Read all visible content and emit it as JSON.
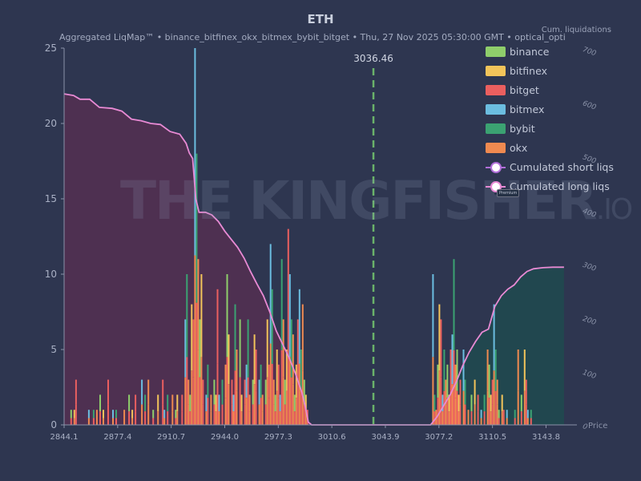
{
  "chart_data": {
    "type": "bar",
    "title": "ETH",
    "subtitle": "Aggregated LiqMap™  •  binance_bitfinex_okx_bitmex_bybit_bitget  •  Thu, 27 Nov 2025 05:30:00 GMT  •  optical_opti",
    "watermark": "THE KINGFISHER",
    "watermark_suffix": ".IO",
    "xlabel": "Price",
    "ylabel_right": "Cum. liquidations",
    "xlim": [
      2844.1,
      3163.0
    ],
    "ylim": [
      0,
      25
    ],
    "ylim_right": [
      0,
      700
    ],
    "x_ticks": [
      "2844.1",
      "2877.4",
      "2910.7",
      "2944.0",
      "2977.3",
      "3010.6",
      "3043.9",
      "3077.2",
      "3110.5",
      "3143.8"
    ],
    "y_ticks": [
      "0",
      "5",
      "10",
      "15",
      "20",
      "25"
    ],
    "y_right_ticks": [
      "0",
      "100",
      "200",
      "300",
      "400",
      "500",
      "600",
      "700"
    ],
    "current_price": 3036.46,
    "current_price_label": "3036.46",
    "price_badge": "Premium",
    "legend": [
      {
        "name": "binance",
        "color": "#8fce6b"
      },
      {
        "name": "bitfinex",
        "color": "#f2c45a"
      },
      {
        "name": "bitget",
        "color": "#ea5f5f"
      },
      {
        "name": "bitmex",
        "color": "#6bbde0"
      },
      {
        "name": "bybit",
        "color": "#3ba272"
      },
      {
        "name": "okx",
        "color": "#f08a50"
      },
      {
        "name": "Cumulated short liqs",
        "color": "#b16fd9"
      },
      {
        "name": "Cumulated long liqs",
        "color": "#e88ad4"
      }
    ],
    "background_color": "#2e3650",
    "long_fill_color": "#5a2f52",
    "short_fill_color": "#1f4a4f",
    "bars": [
      {
        "x": 2848.5,
        "y": 1
      },
      {
        "x": 2850.5,
        "y": 1
      },
      {
        "x": 2851.5,
        "y": 3
      },
      {
        "x": 2859.5,
        "y": 1
      },
      {
        "x": 2862.5,
        "y": 1
      },
      {
        "x": 2864.5,
        "y": 1
      },
      {
        "x": 2866.5,
        "y": 2
      },
      {
        "x": 2868.5,
        "y": 1
      },
      {
        "x": 2871.5,
        "y": 3
      },
      {
        "x": 2874.5,
        "y": 1
      },
      {
        "x": 2876.5,
        "y": 1
      },
      {
        "x": 2881.5,
        "y": 1
      },
      {
        "x": 2884.5,
        "y": 2
      },
      {
        "x": 2886.5,
        "y": 1
      },
      {
        "x": 2888.5,
        "y": 2
      },
      {
        "x": 2892.5,
        "y": 3
      },
      {
        "x": 2894.5,
        "y": 2
      },
      {
        "x": 2896.5,
        "y": 3
      },
      {
        "x": 2899.5,
        "y": 1
      },
      {
        "x": 2902.5,
        "y": 2
      },
      {
        "x": 2905.5,
        "y": 3
      },
      {
        "x": 2906.5,
        "y": 1
      },
      {
        "x": 2908.5,
        "y": 2
      },
      {
        "x": 2911.5,
        "y": 2
      },
      {
        "x": 2913.5,
        "y": 1
      },
      {
        "x": 2914.5,
        "y": 2
      },
      {
        "x": 2917.5,
        "y": 2
      },
      {
        "x": 2919.5,
        "y": 7
      },
      {
        "x": 2920.5,
        "y": 10
      },
      {
        "x": 2921.5,
        "y": 3
      },
      {
        "x": 2922.5,
        "y": 2
      },
      {
        "x": 2923.5,
        "y": 8
      },
      {
        "x": 2924.5,
        "y": 7
      },
      {
        "x": 2925.5,
        "y": 25
      },
      {
        "x": 2926.5,
        "y": 18
      },
      {
        "x": 2927.5,
        "y": 11
      },
      {
        "x": 2928.5,
        "y": 7
      },
      {
        "x": 2929.5,
        "y": 10
      },
      {
        "x": 2930.5,
        "y": 3
      },
      {
        "x": 2932.5,
        "y": 2
      },
      {
        "x": 2933.5,
        "y": 4
      },
      {
        "x": 2935.5,
        "y": 2
      },
      {
        "x": 2937.5,
        "y": 3
      },
      {
        "x": 2938.5,
        "y": 2
      },
      {
        "x": 2939.5,
        "y": 9
      },
      {
        "x": 2940.5,
        "y": 2
      },
      {
        "x": 2942.5,
        "y": 3
      },
      {
        "x": 2944.5,
        "y": 4
      },
      {
        "x": 2945.5,
        "y": 10
      },
      {
        "x": 2946.5,
        "y": 6
      },
      {
        "x": 2948.5,
        "y": 3
      },
      {
        "x": 2949.5,
        "y": 2
      },
      {
        "x": 2950.5,
        "y": 8
      },
      {
        "x": 2951.5,
        "y": 5
      },
      {
        "x": 2953.5,
        "y": 7
      },
      {
        "x": 2954.5,
        "y": 2
      },
      {
        "x": 2956.5,
        "y": 3
      },
      {
        "x": 2957.5,
        "y": 4
      },
      {
        "x": 2958.5,
        "y": 7
      },
      {
        "x": 2959.5,
        "y": 2
      },
      {
        "x": 2961.5,
        "y": 3
      },
      {
        "x": 2962.5,
        "y": 6
      },
      {
        "x": 2963.5,
        "y": 5
      },
      {
        "x": 2965.5,
        "y": 3
      },
      {
        "x": 2966.5,
        "y": 4
      },
      {
        "x": 2967.5,
        "y": 2
      },
      {
        "x": 2969.5,
        "y": 3
      },
      {
        "x": 2970.5,
        "y": 7
      },
      {
        "x": 2971.5,
        "y": 4
      },
      {
        "x": 2972.5,
        "y": 12
      },
      {
        "x": 2973.5,
        "y": 9
      },
      {
        "x": 2974.5,
        "y": 3
      },
      {
        "x": 2975.5,
        "y": 2
      },
      {
        "x": 2976.5,
        "y": 5
      },
      {
        "x": 2977.5,
        "y": 4
      },
      {
        "x": 2978.5,
        "y": 2
      },
      {
        "x": 2979.5,
        "y": 11
      },
      {
        "x": 2980.5,
        "y": 7
      },
      {
        "x": 2981.5,
        "y": 3
      },
      {
        "x": 2982.5,
        "y": 5
      },
      {
        "x": 2983.5,
        "y": 13
      },
      {
        "x": 2984.5,
        "y": 10
      },
      {
        "x": 2985.5,
        "y": 7
      },
      {
        "x": 2986.5,
        "y": 6
      },
      {
        "x": 2987.5,
        "y": 2
      },
      {
        "x": 2988.5,
        "y": 4
      },
      {
        "x": 2989.5,
        "y": 7
      },
      {
        "x": 2990.5,
        "y": 9
      },
      {
        "x": 2991.5,
        "y": 5
      },
      {
        "x": 2992.5,
        "y": 8
      },
      {
        "x": 2993.5,
        "y": 3
      },
      {
        "x": 2994.5,
        "y": 2
      },
      {
        "x": 2995.5,
        "y": 1
      },
      {
        "x": 3073.5,
        "y": 10
      },
      {
        "x": 3074.5,
        "y": 2
      },
      {
        "x": 3075.5,
        "y": 1
      },
      {
        "x": 3076.5,
        "y": 4
      },
      {
        "x": 3077.5,
        "y": 8
      },
      {
        "x": 3078.5,
        "y": 7
      },
      {
        "x": 3079.5,
        "y": 2
      },
      {
        "x": 3080.5,
        "y": 5
      },
      {
        "x": 3081.5,
        "y": 3
      },
      {
        "x": 3082.5,
        "y": 4
      },
      {
        "x": 3083.5,
        "y": 2
      },
      {
        "x": 3084.5,
        "y": 5
      },
      {
        "x": 3085.5,
        "y": 6
      },
      {
        "x": 3086.5,
        "y": 11
      },
      {
        "x": 3087.5,
        "y": 4
      },
      {
        "x": 3088.5,
        "y": 5
      },
      {
        "x": 3089.5,
        "y": 2
      },
      {
        "x": 3090.5,
        "y": 3
      },
      {
        "x": 3092.5,
        "y": 5
      },
      {
        "x": 3093.5,
        "y": 3
      },
      {
        "x": 3095.5,
        "y": 1
      },
      {
        "x": 3097.5,
        "y": 2
      },
      {
        "x": 3099.5,
        "y": 3
      },
      {
        "x": 3101.5,
        "y": 2
      },
      {
        "x": 3103.5,
        "y": 1
      },
      {
        "x": 3105.5,
        "y": 2
      },
      {
        "x": 3107.5,
        "y": 5
      },
      {
        "x": 3108.5,
        "y": 4
      },
      {
        "x": 3109.5,
        "y": 2
      },
      {
        "x": 3110.5,
        "y": 3
      },
      {
        "x": 3111.5,
        "y": 8
      },
      {
        "x": 3112.5,
        "y": 5
      },
      {
        "x": 3113.5,
        "y": 3
      },
      {
        "x": 3114.5,
        "y": 1
      },
      {
        "x": 3116.5,
        "y": 2
      },
      {
        "x": 3117.5,
        "y": 1
      },
      {
        "x": 3119.5,
        "y": 1
      },
      {
        "x": 3124.5,
        "y": 1
      },
      {
        "x": 3126.5,
        "y": 5
      },
      {
        "x": 3128.5,
        "y": 2
      },
      {
        "x": 3130.5,
        "y": 5
      },
      {
        "x": 3131.5,
        "y": 3
      },
      {
        "x": 3132.5,
        "y": 1
      },
      {
        "x": 3134.5,
        "y": 1
      }
    ],
    "cumulative_long": [
      {
        "x": 2844.1,
        "y": 615
      },
      {
        "x": 2850,
        "y": 612
      },
      {
        "x": 2854,
        "y": 605
      },
      {
        "x": 2860,
        "y": 605
      },
      {
        "x": 2866,
        "y": 590
      },
      {
        "x": 2874,
        "y": 588
      },
      {
        "x": 2880,
        "y": 583
      },
      {
        "x": 2886,
        "y": 568
      },
      {
        "x": 2892,
        "y": 565
      },
      {
        "x": 2898,
        "y": 560
      },
      {
        "x": 2904,
        "y": 558
      },
      {
        "x": 2910,
        "y": 545
      },
      {
        "x": 2916,
        "y": 540
      },
      {
        "x": 2920,
        "y": 523
      },
      {
        "x": 2922,
        "y": 505
      },
      {
        "x": 2924,
        "y": 495
      },
      {
        "x": 2926,
        "y": 420
      },
      {
        "x": 2928,
        "y": 395
      },
      {
        "x": 2930,
        "y": 395
      },
      {
        "x": 2932,
        "y": 395
      },
      {
        "x": 2936,
        "y": 390
      },
      {
        "x": 2940,
        "y": 378
      },
      {
        "x": 2944,
        "y": 360
      },
      {
        "x": 2948,
        "y": 345
      },
      {
        "x": 2952,
        "y": 330
      },
      {
        "x": 2956,
        "y": 310
      },
      {
        "x": 2960,
        "y": 285
      },
      {
        "x": 2964,
        "y": 262
      },
      {
        "x": 2968,
        "y": 240
      },
      {
        "x": 2972,
        "y": 210
      },
      {
        "x": 2976,
        "y": 175
      },
      {
        "x": 2980,
        "y": 150
      },
      {
        "x": 2984,
        "y": 125
      },
      {
        "x": 2988,
        "y": 95
      },
      {
        "x": 2992,
        "y": 60
      },
      {
        "x": 2994,
        "y": 35
      },
      {
        "x": 2996,
        "y": 5
      },
      {
        "x": 2998,
        "y": 0
      },
      {
        "x": 3036.46,
        "y": 0
      }
    ],
    "cumulative_short": [
      {
        "x": 3036.46,
        "y": 0
      },
      {
        "x": 3072,
        "y": 0
      },
      {
        "x": 3076,
        "y": 15
      },
      {
        "x": 3080,
        "y": 35
      },
      {
        "x": 3084,
        "y": 55
      },
      {
        "x": 3088,
        "y": 80
      },
      {
        "x": 3092,
        "y": 110
      },
      {
        "x": 3096,
        "y": 135
      },
      {
        "x": 3100,
        "y": 155
      },
      {
        "x": 3104,
        "y": 172
      },
      {
        "x": 3108,
        "y": 178
      },
      {
        "x": 3112,
        "y": 220
      },
      {
        "x": 3116,
        "y": 240
      },
      {
        "x": 3120,
        "y": 252
      },
      {
        "x": 3124,
        "y": 260
      },
      {
        "x": 3128,
        "y": 275
      },
      {
        "x": 3132,
        "y": 285
      },
      {
        "x": 3136,
        "y": 290
      },
      {
        "x": 3142,
        "y": 292
      },
      {
        "x": 3148,
        "y": 293
      },
      {
        "x": 3155,
        "y": 293
      }
    ]
  }
}
